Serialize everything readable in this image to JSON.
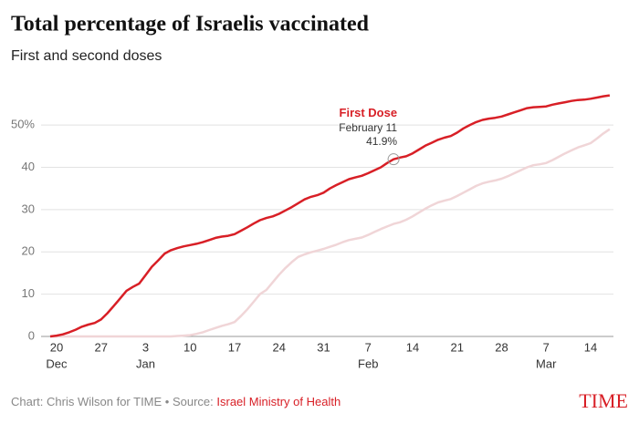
{
  "chart_data": {
    "type": "line",
    "title": "Total percentage of Israelis vaccinated",
    "subtitle": "First and second doses",
    "categories": [
      null,
      "20",
      null,
      null,
      null,
      null,
      null,
      null,
      "27",
      null,
      null,
      null,
      null,
      null,
      null,
      "3",
      null,
      null,
      null,
      null,
      null,
      null,
      "10",
      null,
      null,
      null,
      null,
      null,
      null,
      "17",
      null,
      null,
      null,
      null,
      null,
      null,
      "24",
      null,
      null,
      null,
      null,
      null,
      null,
      "31",
      null,
      null,
      null,
      null,
      null,
      null,
      "7",
      null,
      null,
      null,
      null,
      null,
      null,
      "14",
      null,
      null,
      null,
      null,
      null,
      null,
      "21",
      null,
      null,
      null,
      null,
      null,
      null,
      "28",
      null,
      null,
      null,
      null,
      null,
      null,
      "7",
      null,
      null,
      null,
      null,
      null,
      null,
      "14",
      null,
      null,
      null
    ],
    "months": [
      null,
      "Dec",
      null,
      null,
      null,
      null,
      null,
      null,
      null,
      null,
      null,
      null,
      null,
      null,
      null,
      "Jan",
      null,
      null,
      null,
      null,
      null,
      null,
      null,
      null,
      null,
      null,
      null,
      null,
      null,
      null,
      null,
      null,
      null,
      null,
      null,
      null,
      null,
      null,
      null,
      null,
      null,
      null,
      null,
      null,
      null,
      null,
      null,
      null,
      null,
      null,
      "Feb",
      null,
      null,
      null,
      null,
      null,
      null,
      null,
      null,
      null,
      null,
      null,
      null,
      null,
      null,
      null,
      null,
      null,
      null,
      null,
      null,
      null,
      null,
      null,
      null,
      null,
      null,
      null,
      "Mar",
      null,
      null,
      null,
      null,
      null,
      null,
      null,
      null,
      null,
      null
    ],
    "series": [
      {
        "name": "First Dose",
        "color": "#d81f26",
        "values": [
          0,
          0.2,
          0.5,
          1,
          1.6,
          2.3,
          2.8,
          3.2,
          4,
          5.5,
          7.2,
          9,
          10.8,
          11.7,
          12.5,
          14.5,
          16.5,
          18,
          19.6,
          20.4,
          20.9,
          21.3,
          21.6,
          21.9,
          22.3,
          22.8,
          23.3,
          23.6,
          23.8,
          24.2,
          25,
          25.8,
          26.7,
          27.5,
          28,
          28.4,
          29,
          29.8,
          30.6,
          31.5,
          32.4,
          33,
          33.4,
          34,
          35,
          35.8,
          36.5,
          37.2,
          37.6,
          38,
          38.6,
          39.3,
          40,
          41,
          41.9,
          42.3,
          42.6,
          43.3,
          44.2,
          45.1,
          45.8,
          46.5,
          47,
          47.4,
          48.2,
          49.2,
          50,
          50.7,
          51.2,
          51.5,
          51.7,
          52,
          52.5,
          53,
          53.5,
          54,
          54.2,
          54.3,
          54.4,
          54.8,
          55.1,
          55.4,
          55.7,
          55.9,
          56,
          56.2,
          56.5,
          56.8,
          57
        ],
        "value_labels": [
          null,
          null,
          null,
          null,
          null,
          null,
          null,
          null,
          null,
          null,
          null,
          null,
          null,
          null,
          null,
          null,
          null,
          null,
          null,
          null,
          null,
          null,
          null,
          null,
          null,
          null,
          null,
          null,
          null,
          null,
          null,
          null,
          null,
          null,
          null,
          null,
          null,
          null,
          null,
          null,
          null,
          null,
          null,
          null,
          null,
          null,
          null,
          null,
          null,
          null,
          null,
          null,
          null,
          null,
          "41.9%",
          null,
          null,
          null,
          null,
          null,
          null,
          null,
          null,
          null,
          null,
          null,
          null,
          null,
          null,
          null,
          null,
          null,
          null,
          null,
          null,
          null,
          null,
          null,
          null,
          null,
          null,
          null,
          null,
          null,
          null,
          null,
          null,
          null,
          null
        ]
      },
      {
        "color": "#f0d5d7",
        "values": [
          0,
          0,
          0,
          0,
          0,
          0,
          0,
          0,
          0,
          0,
          0,
          0,
          0,
          0,
          0,
          0,
          0,
          0,
          0,
          0,
          0.1,
          0.2,
          0.3,
          0.6,
          1,
          1.5,
          2,
          2.5,
          2.9,
          3.4,
          4.8,
          6.4,
          8.2,
          10,
          11,
          12.8,
          14.6,
          16.2,
          17.6,
          18.8,
          19.4,
          19.9,
          20.3,
          20.7,
          21.2,
          21.7,
          22.3,
          22.8,
          23.1,
          23.4,
          24,
          24.7,
          25.4,
          26,
          26.6,
          27,
          27.6,
          28.4,
          29.3,
          30.2,
          31,
          31.7,
          32.1,
          32.5,
          33.2,
          34,
          34.8,
          35.6,
          36.2,
          36.6,
          36.9,
          37.3,
          37.9,
          38.6,
          39.3,
          40,
          40.5,
          40.7,
          41,
          41.7,
          42.5,
          43.3,
          44,
          44.7,
          45.2,
          45.7,
          46.8,
          48,
          49
        ]
      }
    ],
    "annotation": {
      "text": "February 11"
    },
    "ylim": [
      0,
      58
    ],
    "yticks": [
      0,
      10,
      20,
      30,
      40,
      {
        "value": 50,
        "label": "50%"
      }
    ],
    "grid": true,
    "source": {
      "prefix": "Chart: Chris Wilson for TIME • Source: ",
      "name": "Israel Ministry of Health"
    },
    "logo": "TIME"
  }
}
